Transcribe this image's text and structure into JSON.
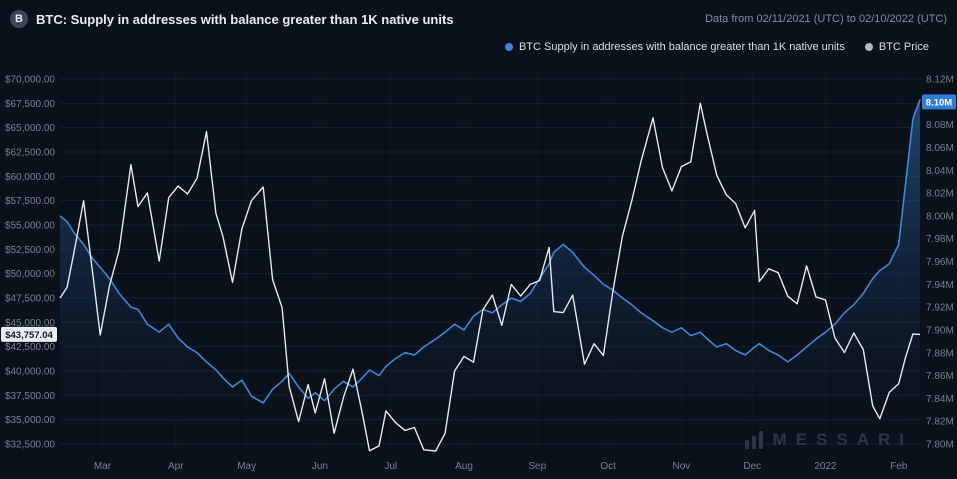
{
  "header": {
    "asset_icon_letter": "B",
    "title": "BTC: Supply in addresses with balance greater than 1K native units",
    "date_range": "Data from 02/11/2021 (UTC) to 02/10/2022 (UTC)"
  },
  "legend": {
    "supply_label": "BTC Supply in addresses with balance greater than 1K native units",
    "price_label": "BTC Price"
  },
  "watermark": {
    "text": "MESSARI"
  },
  "colors": {
    "background": "#0b111a",
    "supply_line": "#3d87d8",
    "price_line": "#e7e9ec",
    "supply_dot": "#3d87d8",
    "price_dot": "#b3bac3",
    "axis_text": "#76808e",
    "grid": "#161f2c",
    "badge_price_bg": "#e9edf2",
    "badge_price_text": "#101826",
    "badge_supply_bg": "#2f7ed8",
    "badge_supply_text": "#ffffff"
  },
  "chart_data": {
    "type": "line",
    "title": "BTC: Supply in addresses with balance greater than 1K native units",
    "date_range": "02/11/2021 (UTC) to 02/10/2022 (UTC)",
    "grid": true,
    "legend_position": "top-right",
    "x_axis": {
      "total_days": 364,
      "ticks": [
        {
          "label": "Mar",
          "day": 18
        },
        {
          "label": "Apr",
          "day": 49
        },
        {
          "label": "May",
          "day": 79
        },
        {
          "label": "Jun",
          "day": 110
        },
        {
          "label": "Jul",
          "day": 140
        },
        {
          "label": "Aug",
          "day": 171
        },
        {
          "label": "Sep",
          "day": 202
        },
        {
          "label": "Oct",
          "day": 232
        },
        {
          "label": "Nov",
          "day": 263
        },
        {
          "label": "Dec",
          "day": 293
        },
        {
          "label": "2022",
          "day": 324
        },
        {
          "label": "Feb",
          "day": 355
        }
      ]
    },
    "x_days": [
      0,
      3,
      6,
      10,
      14,
      17,
      21,
      25,
      30,
      33,
      37,
      42,
      46,
      50,
      54,
      58,
      62,
      66,
      69,
      73,
      77,
      81,
      86,
      90,
      94,
      97,
      101,
      105,
      108,
      112,
      116,
      120,
      124,
      128,
      131,
      135,
      138,
      142,
      146,
      150,
      154,
      159,
      163,
      167,
      171,
      175,
      179,
      183,
      187,
      191,
      195,
      199,
      203,
      207,
      209,
      213,
      217,
      222,
      226,
      230,
      234,
      238,
      242,
      246,
      251,
      255,
      259,
      263,
      267,
      271,
      274,
      278,
      282,
      286,
      290,
      294,
      296,
      300,
      304,
      308,
      312,
      316,
      320,
      324,
      328,
      332,
      336,
      340,
      344,
      347,
      351,
      355,
      358,
      361,
      364
    ],
    "series": [
      {
        "name": "BTC Supply in addresses with balance greater than 1K native units",
        "axis": "right",
        "unit": "M BTC",
        "color": "#3d87d8",
        "values": [
          8.0,
          7.995,
          7.985,
          7.975,
          7.962,
          7.955,
          7.945,
          7.932,
          7.92,
          7.918,
          7.905,
          7.898,
          7.905,
          7.893,
          7.885,
          7.88,
          7.872,
          7.865,
          7.858,
          7.85,
          7.856,
          7.842,
          7.836,
          7.848,
          7.855,
          7.862,
          7.85,
          7.84,
          7.845,
          7.838,
          7.848,
          7.855,
          7.85,
          7.858,
          7.865,
          7.86,
          7.868,
          7.875,
          7.88,
          7.878,
          7.885,
          7.892,
          7.898,
          7.905,
          7.9,
          7.912,
          7.918,
          7.915,
          7.922,
          7.928,
          7.925,
          7.932,
          7.945,
          7.958,
          7.968,
          7.975,
          7.968,
          7.955,
          7.948,
          7.94,
          7.935,
          7.928,
          7.922,
          7.915,
          7.908,
          7.902,
          7.898,
          7.902,
          7.895,
          7.898,
          7.892,
          7.885,
          7.888,
          7.882,
          7.878,
          7.885,
          7.888,
          7.882,
          7.878,
          7.872,
          7.878,
          7.885,
          7.892,
          7.898,
          7.905,
          7.915,
          7.922,
          7.932,
          7.945,
          7.952,
          7.958,
          7.975,
          8.03,
          8.085,
          8.102
        ]
      },
      {
        "name": "BTC Price",
        "axis": "left",
        "unit": "USD",
        "color": "#e7e9ec",
        "values": [
          47500,
          48600,
          52300,
          57500,
          49700,
          43700,
          48800,
          52400,
          61200,
          56900,
          58300,
          51300,
          57800,
          59000,
          58200,
          59800,
          64600,
          56200,
          53800,
          49100,
          54600,
          57500,
          58900,
          49400,
          46500,
          38400,
          34800,
          38600,
          35700,
          39200,
          33600,
          37300,
          40200,
          35600,
          31800,
          32300,
          35900,
          34700,
          33900,
          34200,
          31900,
          29800,
          33600,
          40000,
          41500,
          40900,
          46300,
          47800,
          44700,
          48900,
          47700,
          48900,
          49300,
          52700,
          46100,
          46000,
          47800,
          40700,
          42800,
          41600,
          48200,
          53800,
          57500,
          61600,
          66000,
          60900,
          58500,
          61000,
          61500,
          67500,
          64200,
          60100,
          58100,
          57200,
          54700,
          56500,
          49200,
          50500,
          50100,
          47700,
          46900,
          50800,
          47600,
          47300,
          43400,
          41900,
          43900,
          42200,
          36400,
          35100,
          37800,
          38700,
          41500,
          43800,
          43757.04
        ]
      }
    ],
    "left_axis": {
      "title": "BTC Price (USD)",
      "tick_labels": [
        "$70,000.00",
        "$67,500.00",
        "$65,000.00",
        "$62,500.00",
        "$60,000.00",
        "$57,500.00",
        "$55,000.00",
        "$52,500.00",
        "$50,000.00",
        "$47,500.00",
        "$45,000.00",
        "$42,500.00",
        "$40,000.00",
        "$37,500.00",
        "$35,000.00",
        "$32,500.00"
      ],
      "tick_values": [
        70000,
        67500,
        65000,
        62500,
        60000,
        57500,
        55000,
        52500,
        50000,
        47500,
        45000,
        42500,
        40000,
        37500,
        35000,
        32500
      ]
    },
    "right_axis": {
      "title": "BTC Supply in addresses > 1K (M)",
      "tick_labels": [
        "8.12M",
        "8.10M",
        "8.08M",
        "8.06M",
        "8.04M",
        "8.02M",
        "8.00M",
        "7.98M",
        "7.96M",
        "7.94M",
        "7.92M",
        "7.90M",
        "7.88M",
        "7.86M",
        "7.84M",
        "7.82M",
        "7.80M"
      ],
      "tick_values": [
        8.12,
        8.1,
        8.08,
        8.06,
        8.04,
        8.02,
        8.0,
        7.98,
        7.96,
        7.94,
        7.92,
        7.9,
        7.88,
        7.86,
        7.84,
        7.82,
        7.8
      ]
    },
    "current": {
      "price_label": "$43,757.04",
      "price_value": 43757.04,
      "supply_label": "8.10M",
      "supply_value": 8.1
    }
  }
}
